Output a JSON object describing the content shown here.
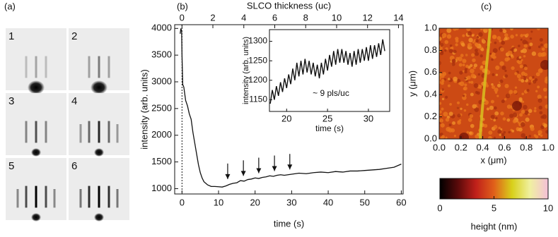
{
  "chart_data": [
    {
      "type": "images",
      "panel": "(a)",
      "labels": [
        "1",
        "2",
        "3",
        "4",
        "5",
        "6"
      ]
    },
    {
      "type": "line",
      "panel": "(b)",
      "x_label": "time (s)",
      "y_label": "intensity (arb. units)",
      "x2_label": "SLCO thickness (uc)",
      "xlim": [
        -2,
        60.5
      ],
      "ylim": [
        900,
        4070
      ],
      "xticks": [
        0,
        10,
        20,
        30,
        40,
        50,
        60
      ],
      "yticks": [
        1000,
        1500,
        2000,
        2500,
        3000,
        3500,
        4000
      ],
      "x2lim": [
        -0.47,
        14.3
      ],
      "x2ticks": [
        0,
        2,
        4,
        6,
        8,
        10,
        12,
        14
      ],
      "vline": 0,
      "color": "#111111",
      "x": [
        -0.5,
        -0.3,
        -0.1,
        0,
        0.2,
        0.5,
        1,
        1.5,
        2,
        2.5,
        3,
        3.5,
        4,
        4.5,
        5,
        5.5,
        6,
        7,
        8,
        9,
        10,
        11,
        12,
        13,
        14,
        15,
        16,
        17,
        18,
        19,
        20,
        21,
        22,
        23,
        24,
        25,
        26,
        27,
        28,
        30,
        32,
        34,
        36,
        38,
        40,
        42,
        44,
        46,
        48,
        50,
        52,
        54,
        56,
        58,
        60
      ],
      "values": [
        3900,
        4000,
        3950,
        3500,
        2950,
        2900,
        2650,
        2550,
        2400,
        2300,
        2050,
        1850,
        1650,
        1450,
        1300,
        1200,
        1130,
        1070,
        1040,
        1040,
        1035,
        1030,
        1050,
        1080,
        1100,
        1110,
        1150,
        1140,
        1170,
        1180,
        1200,
        1190,
        1210,
        1220,
        1240,
        1230,
        1250,
        1260,
        1250,
        1270,
        1290,
        1280,
        1300,
        1310,
        1300,
        1320,
        1310,
        1330,
        1330,
        1340,
        1350,
        1360,
        1380,
        1400,
        1460
      ],
      "arrows": [
        {
          "x": 12.5,
          "y": 1100
        },
        {
          "x": 16.8,
          "y": 1160
        },
        {
          "x": 21,
          "y": 1210
        },
        {
          "x": 25.3,
          "y": 1250
        },
        {
          "x": 29.5,
          "y": 1280
        }
      ],
      "inset": {
        "x_label": "time (s)",
        "y_label": "intensity (arb. units)",
        "annotation": "~ 9 pls/uc",
        "xlim": [
          17.9,
          32.6
        ],
        "ylim": [
          1120,
          1330
        ],
        "xticks": [
          20,
          25,
          30
        ],
        "yticks": [
          1150,
          1200,
          1250,
          1300
        ],
        "x": [
          18,
          18.25,
          18.5,
          18.75,
          19,
          19.25,
          19.5,
          19.75,
          20,
          20.25,
          20.5,
          20.75,
          21,
          21.25,
          21.5,
          21.75,
          22,
          22.25,
          22.5,
          22.75,
          23,
          23.25,
          23.5,
          23.75,
          24,
          24.25,
          24.5,
          24.75,
          25,
          25.25,
          25.5,
          25.75,
          26,
          26.25,
          26.5,
          26.75,
          27,
          27.25,
          27.5,
          27.75,
          28,
          28.25,
          28.5,
          28.75,
          29,
          29.25,
          29.5,
          29.75,
          30,
          30.25,
          30.5,
          30.75,
          31,
          31.25,
          31.5,
          31.75,
          32
        ],
        "values": [
          1140,
          1175,
          1150,
          1185,
          1160,
          1195,
          1170,
          1205,
          1180,
          1215,
          1190,
          1230,
          1200,
          1245,
          1210,
          1250,
          1215,
          1255,
          1220,
          1250,
          1215,
          1245,
          1210,
          1240,
          1205,
          1245,
          1215,
          1255,
          1225,
          1265,
          1235,
          1275,
          1240,
          1280,
          1245,
          1280,
          1245,
          1275,
          1240,
          1270,
          1235,
          1275,
          1240,
          1280,
          1245,
          1280,
          1250,
          1285,
          1250,
          1290,
          1255,
          1290,
          1260,
          1295,
          1265,
          1305,
          1275
        ]
      }
    },
    {
      "type": "heatmap",
      "panel": "(c)",
      "x_label": "x (μm)",
      "y_label": "y (μm)",
      "colorbar_label": "height (nm)",
      "xlim": [
        0,
        1
      ],
      "ylim": [
        0,
        1
      ],
      "xticks": [
        {
          "value": 0,
          "label": "0.0"
        },
        {
          "value": 0.2,
          "label": "0.2"
        },
        {
          "value": 0.4,
          "label": "0.4"
        },
        {
          "value": 0.6,
          "label": "0.6"
        },
        {
          "value": 0.8,
          "label": "0.8"
        },
        {
          "value": 1,
          "label": "1.0"
        }
      ],
      "yticks": [
        {
          "value": 0,
          "label": "0.0"
        },
        {
          "value": 0.2,
          "label": "0.2"
        },
        {
          "value": 0.4,
          "label": "0.4"
        },
        {
          "value": 0.6,
          "label": "0.6"
        },
        {
          "value": 0.8,
          "label": "0.8"
        },
        {
          "value": 1,
          "label": "1.0"
        }
      ],
      "clim": [
        0,
        10
      ],
      "cticks": [
        0,
        5,
        10
      ],
      "colormap": [
        "#000000",
        "#5a0a0a",
        "#c0201a",
        "#e0601a",
        "#d8d01a",
        "#f0f0a0",
        "#f4c0d8"
      ]
    }
  ]
}
